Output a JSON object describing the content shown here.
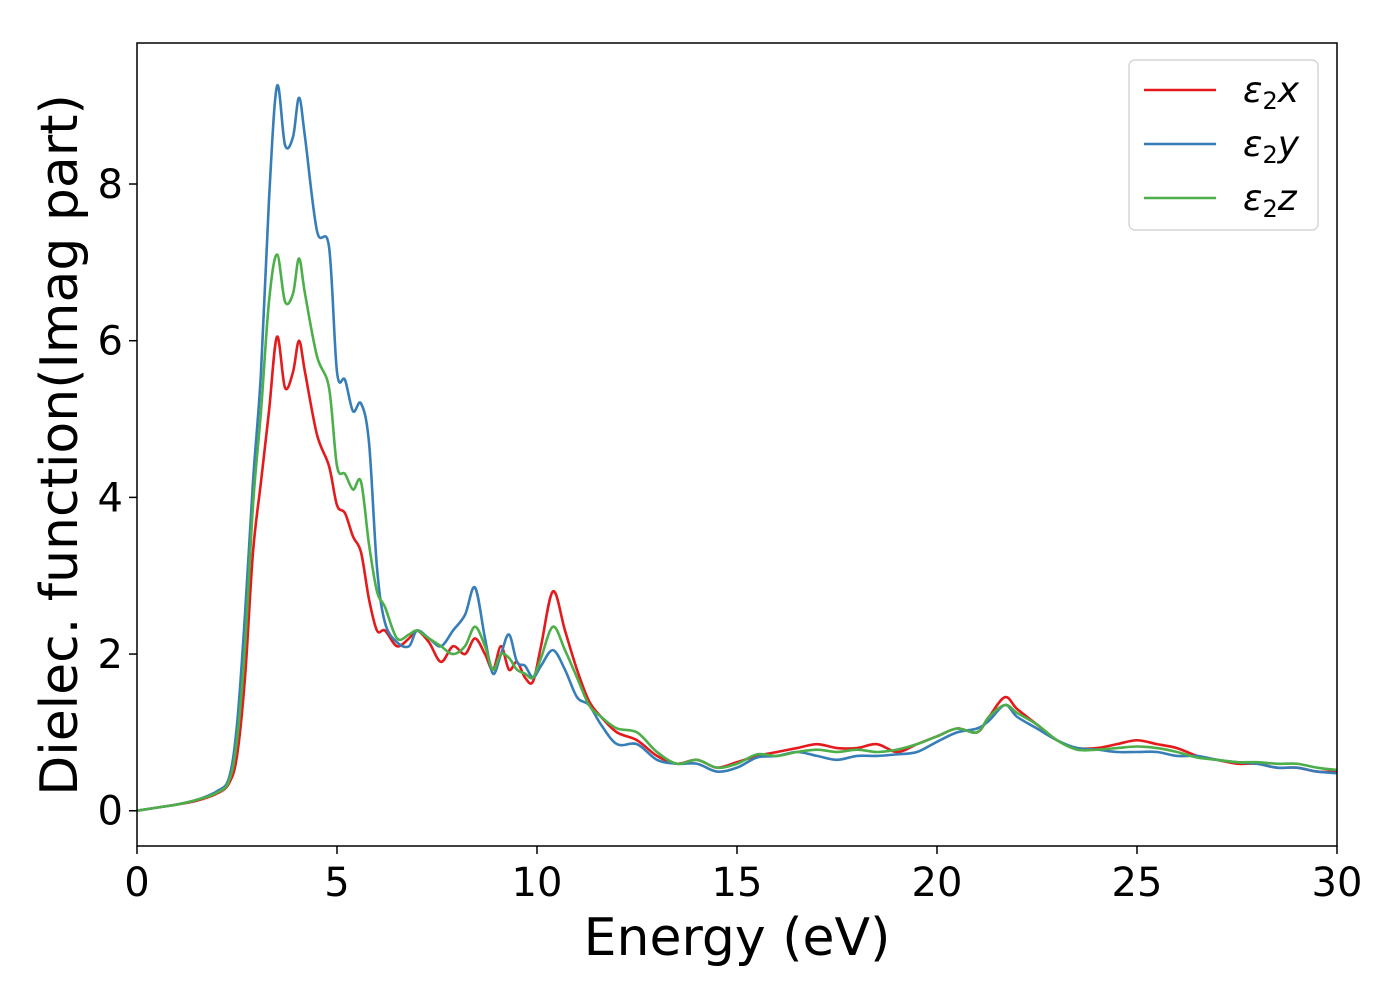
{
  "chart_data": {
    "type": "line",
    "title": "",
    "xlabel": "Energy (eV)",
    "ylabel": "Dielec. function(Imag part)",
    "xlim": [
      0,
      30
    ],
    "ylim": [
      -0.45,
      9.8
    ],
    "xticks": [
      0,
      5,
      10,
      15,
      20,
      25,
      30
    ],
    "yticks": [
      0,
      2,
      4,
      6,
      8
    ],
    "grid": false,
    "legend_position": "top-right",
    "series": [
      {
        "name": "ε₂x",
        "legend_base": "ε",
        "legend_sub": "2",
        "legend_var": "x",
        "color": "#e41a1c",
        "x": [
          0,
          0.5,
          1.0,
          1.5,
          2.0,
          2.3,
          2.5,
          2.7,
          2.9,
          3.1,
          3.3,
          3.5,
          3.7,
          3.9,
          4.05,
          4.2,
          4.5,
          4.8,
          5.0,
          5.2,
          5.4,
          5.6,
          5.8,
          6.0,
          6.2,
          6.5,
          6.8,
          7.0,
          7.3,
          7.6,
          7.9,
          8.2,
          8.45,
          8.7,
          8.9,
          9.1,
          9.3,
          9.5,
          9.7,
          9.9,
          10.1,
          10.4,
          10.7,
          11.0,
          11.3,
          11.6,
          12.0,
          12.5,
          13.0,
          13.5,
          14.0,
          14.5,
          15.0,
          15.5,
          16.0,
          16.5,
          17.0,
          17.5,
          18.0,
          18.5,
          19.0,
          19.5,
          20.0,
          20.5,
          21.0,
          21.3,
          21.7,
          22.0,
          22.5,
          23.0,
          23.5,
          24.0,
          24.5,
          25.0,
          25.5,
          26.0,
          26.5,
          27.0,
          27.5,
          28.0,
          28.5,
          29.0,
          29.5,
          30.0
        ],
        "y": [
          0,
          0.04,
          0.08,
          0.13,
          0.22,
          0.35,
          0.7,
          1.7,
          3.3,
          4.2,
          5.1,
          6.05,
          5.4,
          5.6,
          6.0,
          5.6,
          4.8,
          4.4,
          3.9,
          3.8,
          3.5,
          3.3,
          2.7,
          2.3,
          2.3,
          2.1,
          2.2,
          2.3,
          2.15,
          1.9,
          2.1,
          2.0,
          2.2,
          2.0,
          1.8,
          2.1,
          1.8,
          1.9,
          1.7,
          1.65,
          2.1,
          2.8,
          2.3,
          1.8,
          1.4,
          1.2,
          1.0,
          0.9,
          0.7,
          0.6,
          0.65,
          0.55,
          0.62,
          0.7,
          0.75,
          0.8,
          0.85,
          0.8,
          0.8,
          0.85,
          0.75,
          0.85,
          0.95,
          1.05,
          1.0,
          1.2,
          1.45,
          1.3,
          1.1,
          0.9,
          0.8,
          0.8,
          0.85,
          0.9,
          0.85,
          0.8,
          0.7,
          0.65,
          0.6,
          0.6,
          0.55,
          0.55,
          0.5,
          0.5
        ]
      },
      {
        "name": "ε₂y",
        "legend_base": "ε",
        "legend_sub": "2",
        "legend_var": "y",
        "color": "#377eb8",
        "x": [
          0,
          0.5,
          1.0,
          1.5,
          2.0,
          2.3,
          2.5,
          2.7,
          2.9,
          3.1,
          3.3,
          3.5,
          3.7,
          3.9,
          4.05,
          4.2,
          4.5,
          4.8,
          5.0,
          5.2,
          5.4,
          5.6,
          5.8,
          6.0,
          6.2,
          6.5,
          6.8,
          7.0,
          7.3,
          7.6,
          7.9,
          8.2,
          8.45,
          8.7,
          8.9,
          9.1,
          9.3,
          9.5,
          9.7,
          9.9,
          10.1,
          10.4,
          10.7,
          11.0,
          11.3,
          11.6,
          12.0,
          12.5,
          13.0,
          13.5,
          14.0,
          14.5,
          15.0,
          15.5,
          16.0,
          16.5,
          17.0,
          17.5,
          18.0,
          18.5,
          19.0,
          19.5,
          20.0,
          20.5,
          21.0,
          21.3,
          21.7,
          22.0,
          22.5,
          23.0,
          23.5,
          24.0,
          24.5,
          25.0,
          25.5,
          26.0,
          26.5,
          27.0,
          27.5,
          28.0,
          28.5,
          29.0,
          29.5,
          30.0
        ],
        "y": [
          0,
          0.04,
          0.08,
          0.14,
          0.25,
          0.42,
          1.1,
          2.5,
          4.2,
          5.6,
          7.8,
          9.25,
          8.5,
          8.6,
          9.1,
          8.6,
          7.4,
          7.2,
          5.6,
          5.5,
          5.1,
          5.2,
          4.7,
          3.1,
          2.4,
          2.15,
          2.1,
          2.3,
          2.2,
          2.1,
          2.3,
          2.5,
          2.85,
          2.2,
          1.75,
          2.0,
          2.25,
          1.9,
          1.85,
          1.7,
          1.85,
          2.05,
          1.8,
          1.45,
          1.35,
          1.1,
          0.85,
          0.85,
          0.65,
          0.6,
          0.6,
          0.5,
          0.55,
          0.68,
          0.7,
          0.75,
          0.7,
          0.65,
          0.7,
          0.7,
          0.72,
          0.75,
          0.88,
          1.0,
          1.05,
          1.15,
          1.35,
          1.2,
          1.05,
          0.9,
          0.8,
          0.78,
          0.75,
          0.75,
          0.75,
          0.7,
          0.7,
          0.65,
          0.62,
          0.6,
          0.55,
          0.55,
          0.5,
          0.48
        ]
      },
      {
        "name": "ε₂z",
        "legend_base": "ε",
        "legend_sub": "2",
        "legend_var": "z",
        "color": "#4daf4a",
        "x": [
          0,
          0.5,
          1.0,
          1.5,
          2.0,
          2.3,
          2.5,
          2.7,
          2.9,
          3.1,
          3.3,
          3.5,
          3.7,
          3.9,
          4.05,
          4.2,
          4.5,
          4.8,
          5.0,
          5.2,
          5.4,
          5.6,
          5.8,
          6.0,
          6.2,
          6.5,
          6.8,
          7.0,
          7.3,
          7.6,
          7.9,
          8.2,
          8.45,
          8.7,
          8.9,
          9.1,
          9.3,
          9.5,
          9.7,
          9.9,
          10.1,
          10.4,
          10.7,
          11.0,
          11.3,
          11.6,
          12.0,
          12.5,
          13.0,
          13.5,
          14.0,
          14.5,
          15.0,
          15.5,
          16.0,
          16.5,
          17.0,
          17.5,
          18.0,
          18.5,
          19.0,
          19.5,
          20.0,
          20.5,
          21.0,
          21.3,
          21.7,
          22.0,
          22.5,
          23.0,
          23.5,
          24.0,
          24.5,
          25.0,
          25.5,
          26.0,
          26.5,
          27.0,
          27.5,
          28.0,
          28.5,
          29.0,
          29.5,
          30.0
        ],
        "y": [
          0,
          0.04,
          0.08,
          0.14,
          0.23,
          0.38,
          0.9,
          2.1,
          3.9,
          5.1,
          6.5,
          7.1,
          6.5,
          6.6,
          7.05,
          6.6,
          5.8,
          5.4,
          4.4,
          4.3,
          4.1,
          4.2,
          3.4,
          2.8,
          2.6,
          2.2,
          2.25,
          2.3,
          2.2,
          2.1,
          2.0,
          2.1,
          2.35,
          2.1,
          1.8,
          2.0,
          1.95,
          1.8,
          1.75,
          1.7,
          1.95,
          2.35,
          2.05,
          1.7,
          1.35,
          1.2,
          1.05,
          1.0,
          0.75,
          0.6,
          0.65,
          0.55,
          0.6,
          0.72,
          0.7,
          0.75,
          0.78,
          0.75,
          0.78,
          0.75,
          0.78,
          0.85,
          0.95,
          1.05,
          1.0,
          1.2,
          1.35,
          1.25,
          1.1,
          0.9,
          0.78,
          0.78,
          0.8,
          0.82,
          0.8,
          0.75,
          0.68,
          0.65,
          0.62,
          0.62,
          0.6,
          0.6,
          0.55,
          0.52
        ]
      }
    ]
  }
}
